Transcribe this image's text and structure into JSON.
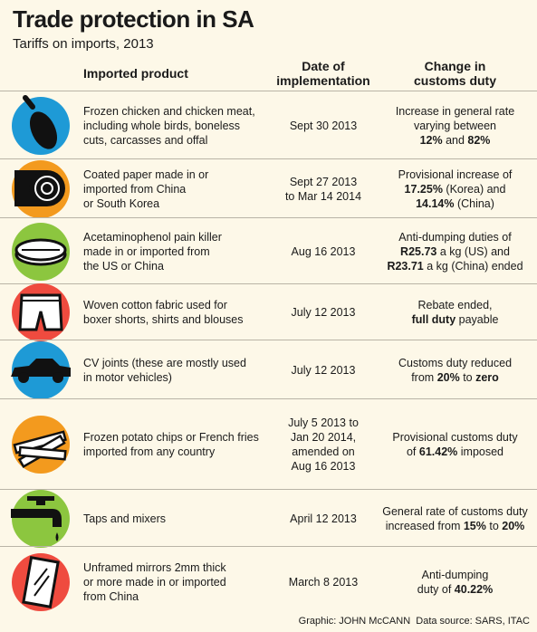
{
  "header": {
    "title": "Trade protection in SA",
    "subtitle": "Tariffs on imports, 2013"
  },
  "columns": [
    [
      "Imported product"
    ],
    [
      "Date of",
      "implementation"
    ],
    [
      "Change in",
      "customs duty"
    ]
  ],
  "rows": [
    {
      "product": [
        "Frozen chicken and chicken meat,",
        "including whole birds, boneless",
        "cuts, carcasses and offal"
      ],
      "date": [
        "Sept 30 2013"
      ],
      "change": [
        [
          {
            "text": "Increase in general rate",
            "bold": false
          }
        ],
        [
          {
            "text": "varying between",
            "bold": false
          }
        ],
        [
          {
            "text": "12%",
            "bold": true
          },
          {
            "text": " and ",
            "bold": false
          },
          {
            "text": "82%",
            "bold": true
          }
        ]
      ]
    },
    {
      "product": [
        "Coated paper made in or",
        "imported from China",
        "or South Korea"
      ],
      "date": [
        "Sept 27 2013",
        "to Mar 14 2014"
      ],
      "change": [
        [
          {
            "text": "Provisional increase of",
            "bold": false
          }
        ],
        [
          {
            "text": "17.25%",
            "bold": true
          },
          {
            "text": " (Korea) and",
            "bold": false
          }
        ],
        [
          {
            "text": "14.14%",
            "bold": true
          },
          {
            "text": " (China)",
            "bold": false
          }
        ]
      ]
    },
    {
      "product": [
        "Acetaminophenol pain killer",
        "made in or imported from",
        "the US or China"
      ],
      "date": [
        "Aug 16 2013"
      ],
      "change": [
        [
          {
            "text": "Anti-dumping duties of",
            "bold": false
          }
        ],
        [
          {
            "text": "R25.73",
            "bold": true
          },
          {
            "text": " a kg (US) and",
            "bold": false
          }
        ],
        [
          {
            "text": "R23.71",
            "bold": true
          },
          {
            "text": " a kg (China) ended",
            "bold": false
          }
        ]
      ]
    },
    {
      "product": [
        "Woven cotton fabric used for",
        "boxer shorts, shirts and blouses"
      ],
      "date": [
        "July 12 2013"
      ],
      "change": [
        [
          {
            "text": "Rebate ended,",
            "bold": false
          }
        ],
        [
          {
            "text": "full duty",
            "bold": true
          },
          {
            "text": " payable",
            "bold": false
          }
        ]
      ]
    },
    {
      "product": [
        "CV joints (these are mostly used",
        "in motor vehicles)"
      ],
      "date": [
        "July 12 2013"
      ],
      "change": [
        [
          {
            "text": "Customs duty reduced",
            "bold": false
          }
        ],
        [
          {
            "text": "from ",
            "bold": false
          },
          {
            "text": "20%",
            "bold": true
          },
          {
            "text": " to ",
            "bold": false
          },
          {
            "text": "zero",
            "bold": true
          }
        ]
      ]
    },
    {
      "product": [
        "Frozen potato chips or French fries",
        "imported from any country"
      ],
      "date": [
        "July 5 2013 to",
        "Jan 20 2014,",
        "amended on",
        "Aug 16 2013"
      ],
      "change": [
        [
          {
            "text": "Provisional customs duty",
            "bold": false
          }
        ],
        [
          {
            "text": "of ",
            "bold": false
          },
          {
            "text": "61.42%",
            "bold": true
          },
          {
            "text": " imposed",
            "bold": false
          }
        ]
      ]
    },
    {
      "product": [
        "Taps and mixers"
      ],
      "date": [
        "April 12 2013"
      ],
      "change": [
        [
          {
            "text": "General rate of customs duty",
            "bold": false
          }
        ],
        [
          {
            "text": "increased from ",
            "bold": false
          },
          {
            "text": "15%",
            "bold": true
          },
          {
            "text": " to ",
            "bold": false
          },
          {
            "text": "20%",
            "bold": true
          }
        ]
      ]
    },
    {
      "product": [
        "Unframed mirrors 2mm thick",
        "or more made in or imported",
        "from China"
      ],
      "date": [
        "March 8 2013"
      ],
      "change": [
        [
          {
            "text": "Anti-dumping",
            "bold": false
          }
        ],
        [
          {
            "text": "duty of ",
            "bold": false
          },
          {
            "text": "40.22%",
            "bold": true
          }
        ]
      ]
    }
  ],
  "footer": {
    "credit": "Graphic: JOHN McCANN",
    "source": "Data source: SARS, ITAC"
  }
}
